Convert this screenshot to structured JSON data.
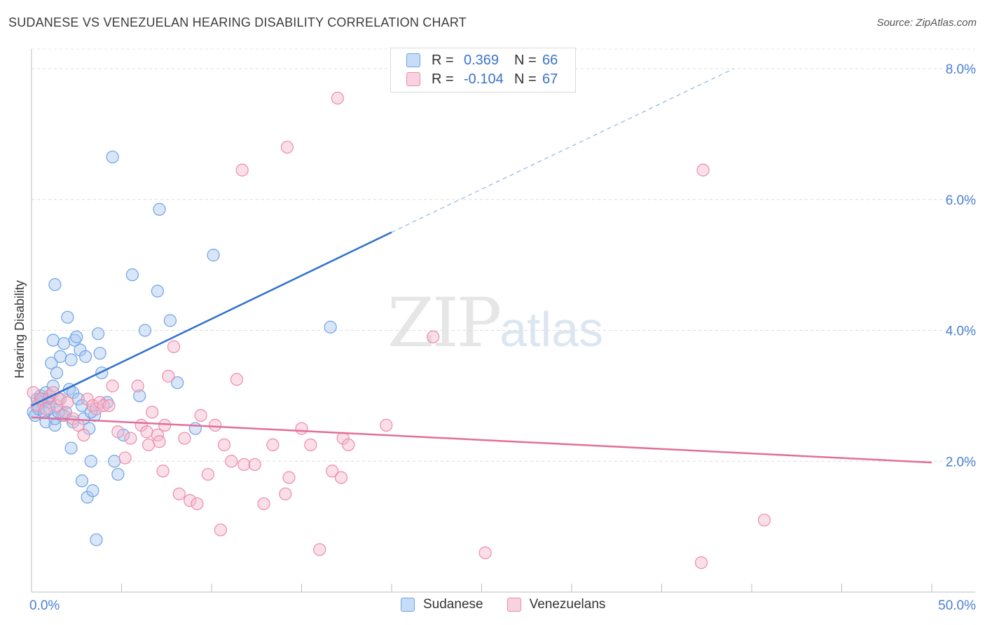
{
  "title": "SUDANESE VS VENEZUELAN HEARING DISABILITY CORRELATION CHART",
  "source": "Source: ZipAtlas.com",
  "watermark": {
    "zip": "ZIP",
    "atlas": "atlas"
  },
  "legend_top": {
    "rows": [
      {
        "r_label": "R =",
        "r_value": "0.369",
        "n_label": "N =",
        "n_value": "66",
        "color": "#a9c8f0"
      },
      {
        "r_label": "R =",
        "r_value": "-0.104",
        "n_label": "N =",
        "n_value": "67",
        "color": "#f5b8cc"
      }
    ]
  },
  "legend_bottom": [
    {
      "label": "Sudanese",
      "color": "#a9c8f0"
    },
    {
      "label": "Venezuelans",
      "color": "#f5b8cc"
    }
  ],
  "chart_data": {
    "type": "scatter",
    "title": "SUDANESE VS VENEZUELAN HEARING DISABILITY CORRELATION CHART",
    "xlabel": "",
    "ylabel": "Hearing Disability",
    "xlim": [
      0,
      50
    ],
    "ylim": [
      0,
      8.3
    ],
    "x_tick_labels": [
      "0.0%",
      "50.0%"
    ],
    "y_ticks": [
      2,
      4,
      6,
      8
    ],
    "y_tick_labels": [
      "2.0%",
      "4.0%",
      "6.0%",
      "8.0%"
    ],
    "grid": true,
    "series": [
      {
        "name": "Sudanese",
        "color": "#6fa3e6",
        "fill": "#a9c8f0",
        "r": 0.369,
        "n": 66,
        "trend": {
          "x0": 0,
          "y0": 2.85,
          "x1": 20,
          "y1": 5.5,
          "dash_to_x": 39,
          "dash_to_y": 8.0
        },
        "points": [
          [
            0.1,
            2.75
          ],
          [
            0.2,
            2.7
          ],
          [
            0.3,
            2.85
          ],
          [
            0.3,
            2.95
          ],
          [
            0.4,
            2.8
          ],
          [
            0.5,
            3.0
          ],
          [
            0.6,
            2.9
          ],
          [
            0.7,
            2.75
          ],
          [
            0.8,
            3.05
          ],
          [
            0.9,
            2.95
          ],
          [
            1.0,
            2.8
          ],
          [
            0.8,
            2.6
          ],
          [
            1.1,
            3.5
          ],
          [
            1.2,
            3.85
          ],
          [
            1.4,
            3.35
          ],
          [
            1.3,
            2.55
          ],
          [
            1.5,
            2.95
          ],
          [
            1.6,
            3.6
          ],
          [
            1.7,
            2.7
          ],
          [
            1.8,
            3.8
          ],
          [
            1.9,
            2.75
          ],
          [
            1.2,
            3.15
          ],
          [
            1.3,
            2.65
          ],
          [
            2.0,
            4.2
          ],
          [
            2.1,
            3.1
          ],
          [
            2.2,
            3.55
          ],
          [
            2.3,
            3.05
          ],
          [
            2.4,
            3.85
          ],
          [
            2.5,
            3.9
          ],
          [
            2.6,
            2.95
          ],
          [
            2.7,
            3.7
          ],
          [
            2.8,
            2.85
          ],
          [
            2.9,
            2.65
          ],
          [
            3.0,
            3.6
          ],
          [
            3.1,
            1.45
          ],
          [
            3.2,
            2.5
          ],
          [
            3.3,
            2.0
          ],
          [
            3.4,
            1.55
          ],
          [
            3.5,
            2.7
          ],
          [
            3.6,
            0.8
          ],
          [
            3.7,
            3.95
          ],
          [
            3.8,
            3.65
          ],
          [
            3.9,
            3.35
          ],
          [
            3.3,
            2.75
          ],
          [
            2.2,
            2.2
          ],
          [
            2.3,
            2.6
          ],
          [
            2.8,
            1.7
          ],
          [
            1.3,
            4.7
          ],
          [
            4.2,
            2.9
          ],
          [
            4.6,
            2.0
          ],
          [
            4.8,
            1.8
          ],
          [
            5.1,
            2.4
          ],
          [
            4.5,
            6.65
          ],
          [
            5.6,
            4.85
          ],
          [
            6.0,
            3.0
          ],
          [
            6.3,
            4.0
          ],
          [
            7.0,
            4.6
          ],
          [
            7.1,
            5.85
          ],
          [
            7.7,
            4.15
          ],
          [
            8.1,
            3.2
          ],
          [
            9.1,
            2.5
          ],
          [
            10.1,
            5.15
          ],
          [
            16.6,
            4.05
          ],
          [
            0.6,
            2.95
          ],
          [
            1.0,
            2.9
          ],
          [
            1.5,
            2.75
          ]
        ]
      },
      {
        "name": "Venezuelans",
        "color": "#ec8bab",
        "fill": "#f5b8cc",
        "r": -0.104,
        "n": 67,
        "trend": {
          "x0": 0,
          "y0": 2.67,
          "x1": 50,
          "y1": 1.98
        },
        "points": [
          [
            0.1,
            3.05
          ],
          [
            0.3,
            2.85
          ],
          [
            0.5,
            2.95
          ],
          [
            0.8,
            2.8
          ],
          [
            1.0,
            3.0
          ],
          [
            1.2,
            3.05
          ],
          [
            1.4,
            2.85
          ],
          [
            1.6,
            2.95
          ],
          [
            1.8,
            2.7
          ],
          [
            2.0,
            2.9
          ],
          [
            2.3,
            2.65
          ],
          [
            2.6,
            2.55
          ],
          [
            2.9,
            2.4
          ],
          [
            3.1,
            2.95
          ],
          [
            3.4,
            2.85
          ],
          [
            3.6,
            2.8
          ],
          [
            3.8,
            2.9
          ],
          [
            4.0,
            2.85
          ],
          [
            4.3,
            2.85
          ],
          [
            4.5,
            3.15
          ],
          [
            4.8,
            2.45
          ],
          [
            5.2,
            2.05
          ],
          [
            5.5,
            2.35
          ],
          [
            5.9,
            3.15
          ],
          [
            6.1,
            2.55
          ],
          [
            6.4,
            2.45
          ],
          [
            6.5,
            2.25
          ],
          [
            6.7,
            2.75
          ],
          [
            7.0,
            2.4
          ],
          [
            7.1,
            2.3
          ],
          [
            7.4,
            2.55
          ],
          [
            7.3,
            1.85
          ],
          [
            7.6,
            3.3
          ],
          [
            7.9,
            3.75
          ],
          [
            8.2,
            1.5
          ],
          [
            8.5,
            2.35
          ],
          [
            8.8,
            1.4
          ],
          [
            9.2,
            1.35
          ],
          [
            9.4,
            2.7
          ],
          [
            9.8,
            1.8
          ],
          [
            10.2,
            2.55
          ],
          [
            10.5,
            0.95
          ],
          [
            10.7,
            2.25
          ],
          [
            11.1,
            2.0
          ],
          [
            11.4,
            3.25
          ],
          [
            11.8,
            1.95
          ],
          [
            12.4,
            1.95
          ],
          [
            12.9,
            1.35
          ],
          [
            13.4,
            2.25
          ],
          [
            14.1,
            1.5
          ],
          [
            14.3,
            1.75
          ],
          [
            15.0,
            2.5
          ],
          [
            15.5,
            2.25
          ],
          [
            16.0,
            0.65
          ],
          [
            16.7,
            1.85
          ],
          [
            17.3,
            2.35
          ],
          [
            17.6,
            2.25
          ],
          [
            17.2,
            1.75
          ],
          [
            19.7,
            2.55
          ],
          [
            22.3,
            3.9
          ],
          [
            25.2,
            0.6
          ],
          [
            11.7,
            6.45
          ],
          [
            14.2,
            6.8
          ],
          [
            17.0,
            7.55
          ],
          [
            37.2,
            0.45
          ],
          [
            37.3,
            6.45
          ],
          [
            40.7,
            1.1
          ]
        ]
      }
    ]
  }
}
